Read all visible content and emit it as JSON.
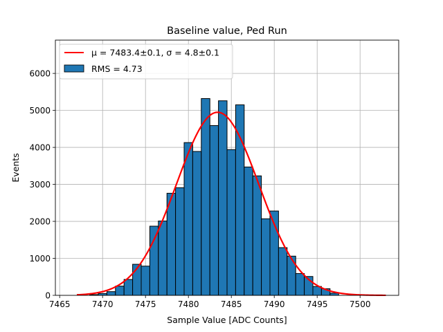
{
  "chart_data": {
    "type": "bar",
    "title": "Baseline value, Ped Run",
    "xlabel": "Sample Value [ADC Counts]",
    "ylabel": "Events",
    "xlim": [
      7464.5,
      7504.5
    ],
    "ylim": [
      0,
      6900
    ],
    "xticks": [
      7465,
      7470,
      7475,
      7480,
      7485,
      7490,
      7495,
      7500
    ],
    "yticks": [
      0,
      1000,
      2000,
      3000,
      4000,
      5000,
      6000
    ],
    "grid": true,
    "legend_position": "top-left",
    "histogram": {
      "name": "RMS = 4.73",
      "bin_width": 1,
      "bin_centers": [
        7469,
        7470,
        7471,
        7472,
        7473,
        7474,
        7475,
        7476,
        7477,
        7478,
        7479,
        7480,
        7481,
        7482,
        7483,
        7484,
        7485,
        7486,
        7487,
        7488,
        7489,
        7490,
        7491,
        7492,
        7493,
        7494,
        7495,
        7496,
        7497
      ],
      "values": [
        20,
        50,
        100,
        250,
        430,
        840,
        790,
        1870,
        2010,
        2760,
        2910,
        4130,
        3890,
        5320,
        4590,
        5260,
        3940,
        5150,
        3470,
        3230,
        2070,
        2280,
        1290,
        1060,
        590,
        510,
        240,
        180,
        60
      ],
      "color": "#1f77b4",
      "edge_color": "#000000"
    },
    "fit": {
      "name": "μ = 7483.4±0.1, σ = 4.8±0.1",
      "mu": 7483.4,
      "sigma": 4.8,
      "amplitude": 4950,
      "x_range": [
        7467,
        7503
      ],
      "color": "#ff0000"
    }
  }
}
